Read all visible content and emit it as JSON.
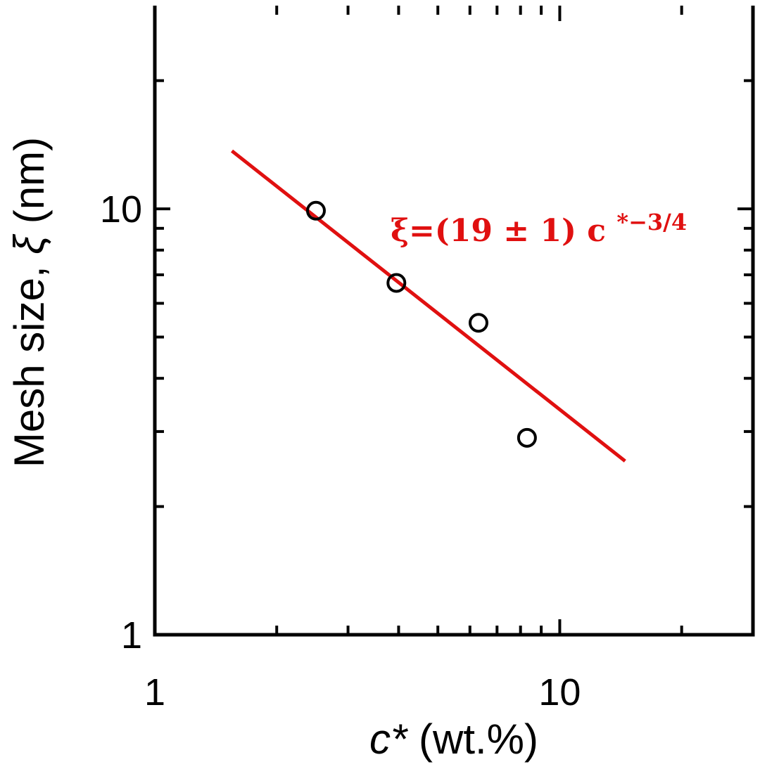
{
  "chart_data": {
    "type": "scatter",
    "xscale": "log",
    "yscale": "log",
    "xlim": [
      1,
      30
    ],
    "ylim": [
      1,
      30
    ],
    "xlabel_prefix": "c*",
    "xlabel_suffix": " (wt.%)",
    "ylabel_prefix": "Mesh size, ",
    "ylabel_symbol": "ξ",
    "ylabel_suffix": " (nm)",
    "x_tick_labels": [
      {
        "value": 1,
        "label": "1"
      },
      {
        "value": 10,
        "label": "10"
      }
    ],
    "y_tick_labels": [
      {
        "value": 1,
        "label": "1"
      },
      {
        "value": 10,
        "label": "10"
      }
    ],
    "series": [
      {
        "kind": "points",
        "x": [
          2.5,
          3.95,
          6.3,
          8.3
        ],
        "y": [
          9.9,
          6.7,
          5.4,
          2.9
        ]
      },
      {
        "kind": "fit",
        "coefficient": 19,
        "exponent": -0.75,
        "x_range": [
          1.55,
          14.5
        ],
        "color": "#e01010"
      }
    ],
    "annotation": {
      "text_main": "ξ=(19 ± 1) c",
      "text_sup": "*−3/4",
      "color": "#e01010"
    },
    "grid": false
  }
}
